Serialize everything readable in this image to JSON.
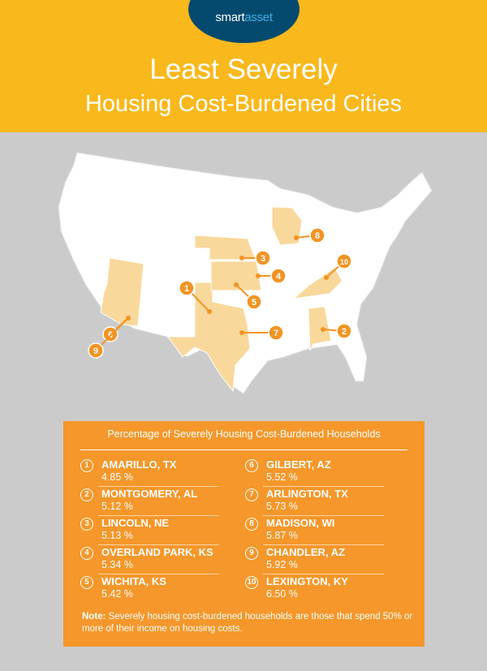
{
  "brand": {
    "logo_part1": "smart",
    "logo_part2": "asset",
    "navy": "#044a6e"
  },
  "header": {
    "title_line1": "Least Severely",
    "title_line2": "Housing Cost-Burdened Cities",
    "bg": "#f9b81c"
  },
  "map": {
    "highlighted_states": [
      "TX",
      "AZ",
      "NE",
      "KS",
      "WI",
      "KY",
      "AL"
    ],
    "highlight_color": "#f9d89b",
    "marker_color": "#f29423",
    "markers": [
      "1",
      "2",
      "3",
      "4",
      "5",
      "6",
      "7",
      "8",
      "9",
      "10"
    ]
  },
  "panel": {
    "title": "Percentage of Severely Housing Cost-Burdened Households",
    "items": [
      {
        "rank": "1",
        "city": "AMARILLO, TX",
        "value": "4.85 %"
      },
      {
        "rank": "2",
        "city": "MONTGOMERY, AL",
        "value": "5.12 %"
      },
      {
        "rank": "3",
        "city": "LINCOLN, NE",
        "value": "5.13 %"
      },
      {
        "rank": "4",
        "city": "OVERLAND PARK, KS",
        "value": "5.34 %"
      },
      {
        "rank": "5",
        "city": "WICHITA, KS",
        "value": "5.42 %"
      },
      {
        "rank": "6",
        "city": "GILBERT, AZ",
        "value": "5.52 %"
      },
      {
        "rank": "7",
        "city": "ARLINGTON, TX",
        "value": "5.73 %"
      },
      {
        "rank": "8",
        "city": "MADISON, WI",
        "value": "5.87 %"
      },
      {
        "rank": "9",
        "city": "CHANDLER, AZ",
        "value": "5.92 %"
      },
      {
        "rank": "10",
        "city": "LEXINGTON, KY",
        "value": "6.50 %"
      }
    ],
    "note_label": "Note:",
    "note_text": " Severely housing cost-burdened households are those that spend 50% or more of their income on housing costs."
  }
}
